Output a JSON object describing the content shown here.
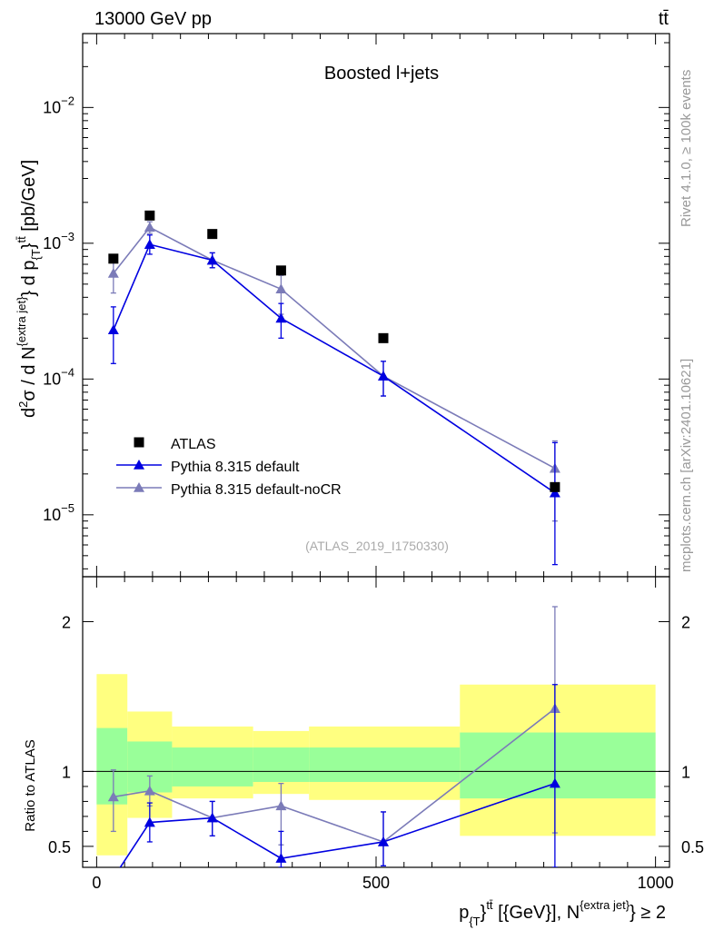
{
  "header": {
    "energy_label": "13000 GeV pp",
    "process_label": "tt̄"
  },
  "side_labels": {
    "rivet": "Rivet 4.1.0, ≥ 100k events",
    "mcplots": "mcplots.cern.ch [arXiv:2401.10621]"
  },
  "colors": {
    "atlas": "#000000",
    "pythia_default": "#0000e0",
    "pythia_nocr": "#7b7bb8",
    "band_inner": "#99ff99",
    "band_outer": "#ffff80"
  },
  "chart_data": [
    {
      "type": "scatter",
      "panel": "main",
      "title": "Boosted l+jets",
      "analysis_tag": "(ATLAS_2019_I1750330)",
      "ylabel": "d²σ / d N^{extra jet} d p_{T}^{tt̄} [pb/GeV]",
      "yscale": "log",
      "ylim": [
        3.5e-06,
        0.035
      ],
      "xlim": [
        -25,
        1025
      ],
      "yticks_major": [
        {
          "value": 1e-05,
          "base": "10",
          "exp": "−5"
        },
        {
          "value": 0.0001,
          "base": "10",
          "exp": "−4"
        },
        {
          "value": 0.001,
          "base": "10",
          "exp": "−3"
        },
        {
          "value": 0.01,
          "base": "10",
          "exp": "−2"
        }
      ],
      "legend": {
        "location": "lower-left",
        "entries": [
          "ATLAS",
          "Pythia 8.315 default",
          "Pythia 8.315 default-noCR"
        ]
      },
      "series": [
        {
          "name": "ATLAS",
          "marker": "square",
          "x": [
            30,
            95,
            207,
            330,
            513,
            820
          ],
          "y": [
            0.00077,
            0.0016,
            0.00117,
            0.00063,
            0.0002,
            1.6e-05
          ]
        },
        {
          "name": "Pythia 8.315 default",
          "marker": "triangle",
          "x": [
            30,
            95,
            207,
            330,
            513,
            820
          ],
          "y": [
            0.00023,
            0.00098,
            0.00075,
            0.00028,
            0.000105,
            1.45e-05
          ],
          "err_lo": [
            0.00013,
            0.00083,
            0.00066,
            0.0002,
            7.5e-05,
            4.3e-06
          ],
          "err_hi": [
            0.00034,
            0.00115,
            0.00085,
            0.00036,
            0.000135,
            3.4e-05
          ]
        },
        {
          "name": "Pythia 8.315 default-noCR",
          "marker": "triangle",
          "x": [
            30,
            95,
            207,
            330,
            513,
            820
          ],
          "y": [
            0.0006,
            0.00131,
            0.00075,
            0.00046,
            0.000105,
            2.2e-05
          ],
          "err_lo": [
            0.00043,
            0.00118,
            0.00066,
            0.0003,
            7.5e-05,
            9e-06
          ],
          "err_hi": [
            0.00077,
            0.00144,
            0.00085,
            0.00058,
            0.000135,
            3.5e-05
          ]
        }
      ]
    },
    {
      "type": "line",
      "panel": "ratio",
      "ylabel": "Ratio to ATLAS",
      "xlabel_main": "p_{T}^{tt̄} [{GeV}], N^{extra jet} ≥ 2",
      "ylim": [
        0.36,
        2.3
      ],
      "xlim": [
        -25,
        1025
      ],
      "yticks_major": [
        0.5,
        1,
        2
      ],
      "yticks_labels": [
        "0.5",
        "1",
        "2"
      ],
      "xticks_major": [
        0,
        500,
        1000
      ],
      "xticks_labels": [
        "0",
        "500",
        "1000"
      ],
      "bands": {
        "edges": [
          0,
          55,
          135,
          280,
          380,
          650,
          1000
        ],
        "inner_lo": [
          0.78,
          0.86,
          0.9,
          0.93,
          0.93,
          0.82
        ],
        "inner_hi": [
          1.29,
          1.2,
          1.16,
          1.16,
          1.16,
          1.26
        ],
        "outer_lo": [
          0.44,
          0.69,
          0.82,
          0.85,
          0.81,
          0.57
        ],
        "outer_hi": [
          1.65,
          1.4,
          1.3,
          1.27,
          1.3,
          1.58
        ]
      },
      "series": [
        {
          "name": "Pythia 8.315 default",
          "x": [
            30,
            95,
            207,
            330,
            513,
            820
          ],
          "y": [
            0.29,
            0.66,
            0.69,
            0.42,
            0.53,
            0.92
          ],
          "err_lo": [
            null,
            0.53,
            0.57,
            0.3,
            0.37,
            0.29
          ],
          "err_hi": [
            null,
            0.79,
            0.8,
            0.6,
            0.73,
            1.58
          ]
        },
        {
          "name": "Pythia 8.315 default-noCR",
          "x": [
            30,
            95,
            207,
            330,
            513,
            820
          ],
          "y": [
            0.83,
            0.87,
            0.69,
            0.77,
            0.53,
            1.42
          ],
          "err_lo": [
            0.6,
            0.77,
            0.57,
            0.51,
            0.37,
            0.59
          ],
          "err_hi": [
            1.01,
            0.97,
            0.8,
            0.92,
            0.73,
            2.1
          ]
        }
      ]
    }
  ]
}
